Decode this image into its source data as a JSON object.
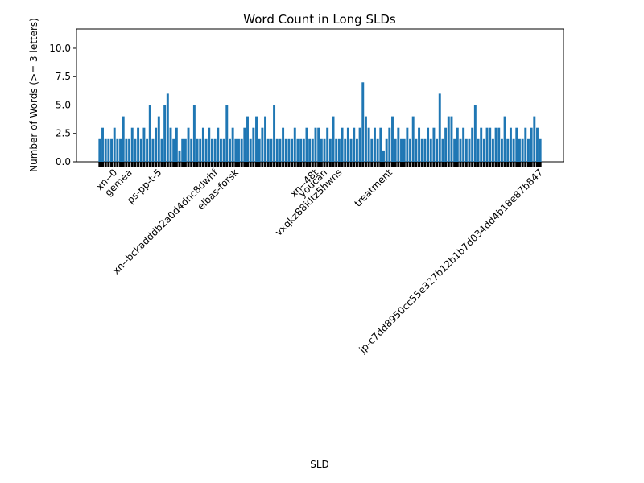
{
  "chart_data": {
    "type": "bar",
    "title": "Word Count in Long SLDs",
    "xlabel": "SLD",
    "ylabel": "Number of Words (>= 3 letters)",
    "color": "#1f77b4",
    "ylim": [
      0,
      11.7
    ],
    "yticks": [
      {
        "value": 0,
        "label": "0.0"
      },
      2.5,
      {
        "value": 5,
        "label": "5.0"
      },
      7.5,
      {
        "value": 10,
        "label": "10.0"
      }
    ],
    "categories": [
      null,
      null,
      null,
      null,
      null,
      "xn--0",
      null,
      null,
      null,
      null,
      "gemea",
      null,
      null,
      null,
      null,
      null,
      null,
      null,
      null,
      null,
      "ps-pp-t-5",
      null,
      null,
      null,
      null,
      null,
      null,
      null,
      null,
      null,
      null,
      null,
      null,
      null,
      null,
      null,
      null,
      null,
      null,
      "xn--bckadddb2a0d4dnc8dwhf",
      null,
      null,
      null,
      null,
      null,
      null,
      "elbas-forsk",
      null,
      null,
      null,
      null,
      null,
      null,
      null,
      null,
      null,
      null,
      null,
      null,
      null,
      null,
      null,
      null,
      null,
      null,
      null,
      null,
      null,
      null,
      null,
      null,
      null,
      null,
      "xn--48t",
      null,
      null,
      "youcan",
      null,
      null,
      null,
      null,
      "vxqkz88idtz5hwns",
      null,
      null,
      null,
      null,
      null,
      null,
      null,
      null,
      null,
      null,
      null,
      null,
      null,
      null,
      null,
      null,
      "treatment",
      null,
      null,
      null,
      null,
      null,
      null,
      null,
      null,
      null,
      null,
      null,
      null,
      null,
      null,
      null,
      null,
      null,
      null,
      null,
      null,
      null,
      null,
      null,
      null,
      null,
      null,
      null,
      null,
      null,
      null,
      null,
      null,
      null,
      null,
      null,
      null,
      null,
      null,
      null,
      null,
      null,
      null,
      null,
      null,
      null,
      null,
      null,
      null,
      null,
      null,
      "jp-c7dd8950cc55e327b12b1b7d034dd4b18e87b847"
    ],
    "values": [
      2,
      3,
      2,
      2,
      2,
      3,
      2,
      2,
      4,
      2,
      2,
      3,
      2,
      3,
      2,
      3,
      2,
      5,
      2,
      3,
      4,
      2,
      5,
      6,
      3,
      2,
      3,
      1,
      2,
      2,
      3,
      2,
      5,
      2,
      2,
      3,
      2,
      3,
      2,
      2,
      3,
      2,
      2,
      5,
      2,
      3,
      2,
      2,
      2,
      3,
      4,
      2,
      3,
      4,
      2,
      3,
      4,
      2,
      2,
      5,
      2,
      2,
      3,
      2,
      2,
      2,
      3,
      2,
      2,
      2,
      3,
      2,
      2,
      3,
      3,
      2,
      2,
      3,
      2,
      4,
      2,
      2,
      3,
      2,
      3,
      2,
      3,
      2,
      3,
      7,
      4,
      3,
      2,
      3,
      2,
      3,
      1,
      2,
      3,
      4,
      2,
      3,
      2,
      2,
      3,
      2,
      4,
      2,
      3,
      2,
      2,
      3,
      2,
      3,
      2,
      6,
      2,
      3,
      4,
      4,
      2,
      3,
      2,
      3,
      2,
      2,
      3,
      5,
      2,
      3,
      2,
      3,
      3,
      2,
      3,
      3,
      2,
      4,
      2,
      3,
      2,
      3,
      2,
      2,
      3,
      2,
      3,
      4,
      3,
      2
    ]
  }
}
